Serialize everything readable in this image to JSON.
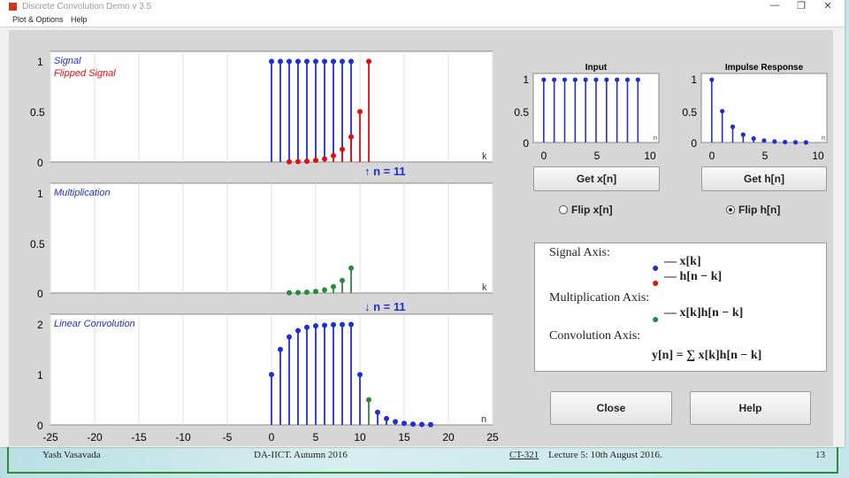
{
  "window": {
    "title": "Discrete Convolution Demo v 3.5",
    "menu": [
      "Plot & Options",
      "Help"
    ],
    "controls": {
      "minimize": "—",
      "restore": "❐",
      "close": "✕"
    }
  },
  "ticks": {
    "k_axis": [
      "-25",
      "-20",
      "-15",
      "-10",
      "-5",
      "0",
      "5",
      "10",
      "15",
      "20",
      "25"
    ],
    "y_signal": [
      "1",
      "0.5",
      "0"
    ],
    "y_conv": [
      "2",
      "1",
      "0"
    ],
    "small_x": [
      "0",
      "5",
      "10"
    ],
    "small_y": [
      "1",
      "0.5",
      "0"
    ]
  },
  "plots": {
    "signal": {
      "legend1": "Signal",
      "legend2": "Flipped Signal",
      "axis_label": "k"
    },
    "marker_up": "↑ n = 11",
    "multiplication": {
      "legend": "Multiplication",
      "axis_label": "k"
    },
    "marker_down": "↓ n = 11",
    "convolution": {
      "legend": "Linear Convolution",
      "axis_label": "n"
    },
    "input": {
      "title": "Input",
      "axis_label": "n"
    },
    "impulse": {
      "title": "Impulse Response",
      "axis_label": "n"
    }
  },
  "controls": {
    "get_x": "Get x[n]",
    "get_h": "Get h[n]",
    "flip_x": "Flip x[n]",
    "flip_h": "Flip h[n]",
    "flip_selected": "h",
    "close": "Close",
    "help": "Help"
  },
  "legend_panel": {
    "signal_axis": "Signal Axis:",
    "signal_item1": "— x[k]",
    "signal_item2": "— h[n − k]",
    "mult_axis": "Multiplication Axis:",
    "mult_item": "— x[k]h[n − k]",
    "conv_axis": "Convolution Axis:",
    "conv_formula": "y[n] = ∑ x[k]h[n − k]"
  },
  "colors": {
    "blue": "#1f2fd0",
    "red": "#e01010",
    "green": "#2a8a3a",
    "label_blue": "#1f2fd0"
  },
  "chart_data": [
    {
      "type": "scatter",
      "title": "",
      "xlabel": "k",
      "ylim": [
        0,
        1.1
      ],
      "xlim": [
        -25,
        25
      ],
      "series": [
        {
          "name": "Signal",
          "x": [
            0,
            1,
            2,
            3,
            4,
            5,
            6,
            7,
            8,
            9
          ],
          "y": [
            1,
            1,
            1,
            1,
            1,
            1,
            1,
            1,
            1,
            1
          ]
        },
        {
          "name": "Flipped Signal",
          "x": [
            2,
            3,
            4,
            5,
            6,
            7,
            8,
            9,
            10,
            11
          ],
          "y": [
            0.002,
            0.004,
            0.008,
            0.016,
            0.031,
            0.063,
            0.125,
            0.25,
            0.5,
            1
          ]
        }
      ]
    },
    {
      "type": "scatter",
      "title": "",
      "xlabel": "k",
      "ylim": [
        0,
        1.1
      ],
      "xlim": [
        -25,
        25
      ],
      "series": [
        {
          "name": "Multiplication",
          "x": [
            2,
            3,
            4,
            5,
            6,
            7,
            8,
            9
          ],
          "y": [
            0.002,
            0.004,
            0.008,
            0.016,
            0.031,
            0.063,
            0.125,
            0.25
          ]
        }
      ]
    },
    {
      "type": "scatter",
      "title": "",
      "xlabel": "n",
      "ylim": [
        0,
        2.2
      ],
      "xlim": [
        -25,
        25
      ],
      "series": [
        {
          "name": "Linear Convolution",
          "x": [
            0,
            1,
            2,
            3,
            4,
            5,
            6,
            7,
            8,
            9,
            10
          ],
          "y": [
            1,
            1.5,
            1.75,
            1.875,
            1.94,
            1.97,
            1.98,
            1.99,
            1.996,
            1.998,
            0.999
          ]
        },
        {
          "name": "current",
          "x": [
            11
          ],
          "y": [
            0.5
          ]
        },
        {
          "x": [
            12,
            13,
            14,
            15,
            16,
            17,
            18
          ],
          "y": [
            0.25,
            0.125,
            0.063,
            0.031,
            0.016,
            0.008,
            0.004
          ]
        }
      ]
    },
    {
      "type": "scatter",
      "title": "Input",
      "xlabel": "n",
      "ylim": [
        0,
        1.1
      ],
      "xlim": [
        -1,
        11
      ],
      "series": [
        {
          "x": [
            0,
            1,
            2,
            3,
            4,
            5,
            6,
            7,
            8,
            9
          ],
          "y": [
            1,
            1,
            1,
            1,
            1,
            1,
            1,
            1,
            1,
            1
          ]
        }
      ]
    },
    {
      "type": "scatter",
      "title": "Impulse Response",
      "xlabel": "n",
      "ylim": [
        0,
        1.1
      ],
      "xlim": [
        -1,
        11
      ],
      "series": [
        {
          "x": [
            0,
            1,
            2,
            3,
            4,
            5,
            6,
            7,
            8,
            9
          ],
          "y": [
            1,
            0.5,
            0.25,
            0.125,
            0.063,
            0.031,
            0.016,
            0.008,
            0.004,
            0.002
          ]
        }
      ]
    }
  ],
  "footer": {
    "author": "Yash Vasavada",
    "institute": "DA-IICT. Autumn 2016",
    "course": "CT-321",
    "lecture": "Lecture 5: 10th August 2016.",
    "page": "13"
  }
}
